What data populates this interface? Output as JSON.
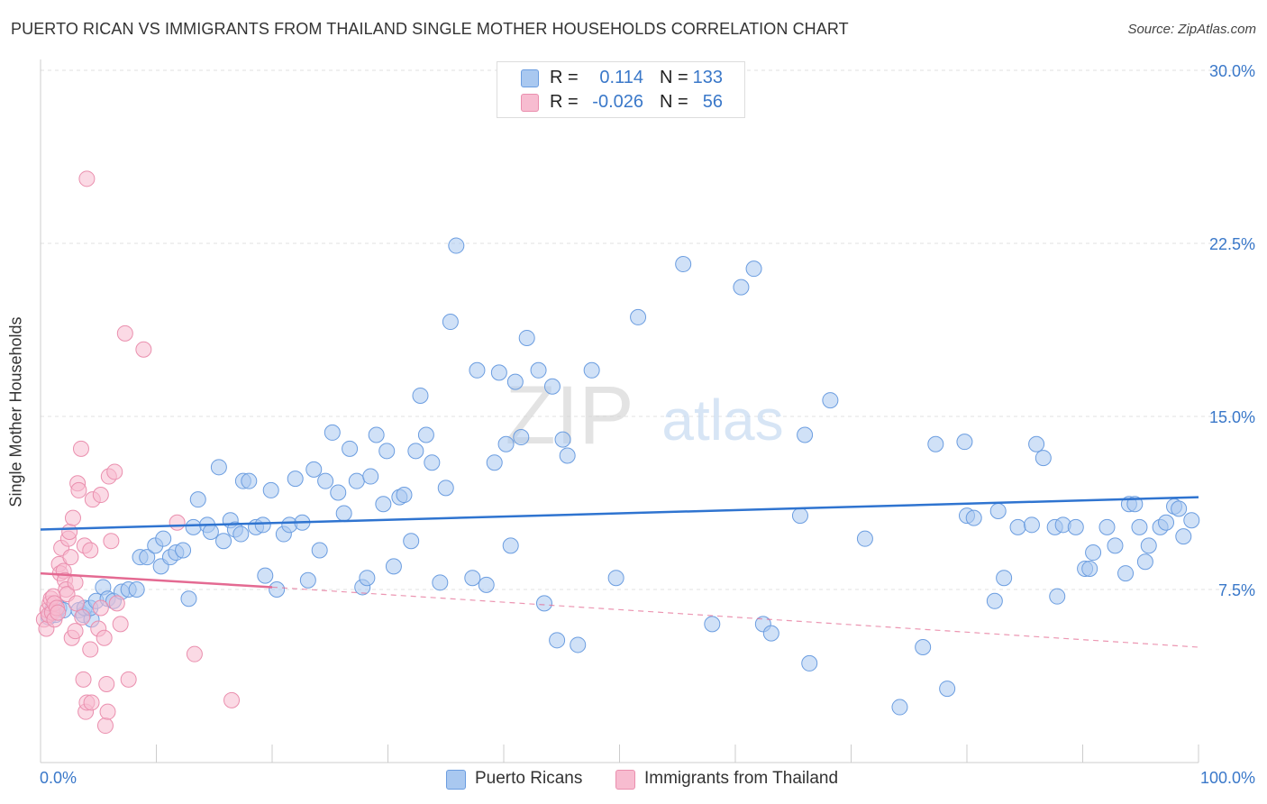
{
  "header": {
    "title": "PUERTO RICAN VS IMMIGRANTS FROM THAILAND SINGLE MOTHER HOUSEHOLDS CORRELATION CHART",
    "source": "Source: ZipAtlas.com"
  },
  "legend_top": {
    "rows": [
      {
        "r_label": "R =",
        "r_value": "0.114",
        "n_label": "N =",
        "n_value": "133",
        "color": "#a9c8f0",
        "border": "#6b9de0"
      },
      {
        "r_label": "R =",
        "r_value": "-0.026",
        "n_label": "N =",
        "n_value": "56",
        "color": "#f7bcd0",
        "border": "#ea8fae"
      }
    ]
  },
  "legend_bottom": {
    "items": [
      {
        "label": "Puerto Ricans",
        "color": "#a9c8f0",
        "border": "#6b9de0"
      },
      {
        "label": "Immigrants from Thailand",
        "color": "#f7bcd0",
        "border": "#ea8fae"
      }
    ]
  },
  "watermark": {
    "zip": "ZIP",
    "atlas": "atlas"
  },
  "chart_data": {
    "type": "scatter",
    "title": "PUERTO RICAN VS IMMIGRANTS FROM THAILAND SINGLE MOTHER HOUSEHOLDS CORRELATION CHART",
    "xlabel": "",
    "ylabel": "Single Mother Households",
    "xlim": [
      0,
      100
    ],
    "ylim": [
      0,
      30
    ],
    "x_tick_labels": [
      "0.0%",
      "100.0%"
    ],
    "y_ticks": [
      7.5,
      15.0,
      22.5,
      30.0
    ],
    "y_tick_labels": [
      "7.5%",
      "15.0%",
      "22.5%",
      "30.0%"
    ],
    "grid": true,
    "colors": {
      "blue_fill": "#a9c8f0",
      "blue_stroke": "#6b9de0",
      "blue_line": "#2f74d0",
      "pink_fill": "#f7bcd0",
      "pink_stroke": "#ea8fae",
      "pink_line": "#e46a92",
      "axis_text": "#3a78c9"
    },
    "series": [
      {
        "name": "Puerto Ricans",
        "trend": {
          "x0": 0,
          "y0": 10.1,
          "x1": 100,
          "y1": 11.5
        },
        "points": [
          [
            0.7,
            6.3
          ],
          [
            1.0,
            6.6
          ],
          [
            1.3,
            6.4
          ],
          [
            1.6,
            6.7
          ],
          [
            2.0,
            6.6
          ],
          [
            3.3,
            6.6
          ],
          [
            3.7,
            6.4
          ],
          [
            4.4,
            6.2
          ],
          [
            3.8,
            6.7
          ],
          [
            4.3,
            6.7
          ],
          [
            4.8,
            7.0
          ],
          [
            5.4,
            7.6
          ],
          [
            5.8,
            7.1
          ],
          [
            6.3,
            7.0
          ],
          [
            7.0,
            7.4
          ],
          [
            7.6,
            7.5
          ],
          [
            8.3,
            7.5
          ],
          [
            8.6,
            8.9
          ],
          [
            9.2,
            8.9
          ],
          [
            9.9,
            9.4
          ],
          [
            10.4,
            8.5
          ],
          [
            10.6,
            9.7
          ],
          [
            11.2,
            8.9
          ],
          [
            11.7,
            9.1
          ],
          [
            12.3,
            9.2
          ],
          [
            12.8,
            7.1
          ],
          [
            13.2,
            10.2
          ],
          [
            13.6,
            11.4
          ],
          [
            14.4,
            10.3
          ],
          [
            14.7,
            10.0
          ],
          [
            15.4,
            12.8
          ],
          [
            15.8,
            9.6
          ],
          [
            16.4,
            10.5
          ],
          [
            16.8,
            10.1
          ],
          [
            17.3,
            9.9
          ],
          [
            17.5,
            12.2
          ],
          [
            18.0,
            12.2
          ],
          [
            18.6,
            10.2
          ],
          [
            19.2,
            10.3
          ],
          [
            19.4,
            8.1
          ],
          [
            19.9,
            11.8
          ],
          [
            20.4,
            7.5
          ],
          [
            21.0,
            9.9
          ],
          [
            21.5,
            10.3
          ],
          [
            22.0,
            12.3
          ],
          [
            22.6,
            10.4
          ],
          [
            23.1,
            7.9
          ],
          [
            23.6,
            12.7
          ],
          [
            24.1,
            9.2
          ],
          [
            24.6,
            12.2
          ],
          [
            25.2,
            14.3
          ],
          [
            25.7,
            11.7
          ],
          [
            26.2,
            10.8
          ],
          [
            26.7,
            13.6
          ],
          [
            27.3,
            12.2
          ],
          [
            27.8,
            7.6
          ],
          [
            28.2,
            8.0
          ],
          [
            28.5,
            12.4
          ],
          [
            29.0,
            14.2
          ],
          [
            29.6,
            11.2
          ],
          [
            29.9,
            13.5
          ],
          [
            30.5,
            8.5
          ],
          [
            31.0,
            11.5
          ],
          [
            31.4,
            11.6
          ],
          [
            32.0,
            9.6
          ],
          [
            32.4,
            13.5
          ],
          [
            32.8,
            15.9
          ],
          [
            33.3,
            14.2
          ],
          [
            33.8,
            13.0
          ],
          [
            34.5,
            7.8
          ],
          [
            35.0,
            11.9
          ],
          [
            35.4,
            19.1
          ],
          [
            35.9,
            22.4
          ],
          [
            37.3,
            8.0
          ],
          [
            37.7,
            17.0
          ],
          [
            38.5,
            7.7
          ],
          [
            39.2,
            13.0
          ],
          [
            39.6,
            16.9
          ],
          [
            40.2,
            13.8
          ],
          [
            40.6,
            9.4
          ],
          [
            41.0,
            16.5
          ],
          [
            41.5,
            14.1
          ],
          [
            42.0,
            18.4
          ],
          [
            43.0,
            17.0
          ],
          [
            43.5,
            6.9
          ],
          [
            44.2,
            16.3
          ],
          [
            44.6,
            5.3
          ],
          [
            45.1,
            14.0
          ],
          [
            45.5,
            13.3
          ],
          [
            46.4,
            5.1
          ],
          [
            47.6,
            17.0
          ],
          [
            49.7,
            8.0
          ],
          [
            51.6,
            19.3
          ],
          [
            55.5,
            21.6
          ],
          [
            58.0,
            6.0
          ],
          [
            60.5,
            20.6
          ],
          [
            61.6,
            21.4
          ],
          [
            62.4,
            6.0
          ],
          [
            63.1,
            5.6
          ],
          [
            65.6,
            10.7
          ],
          [
            66.0,
            14.2
          ],
          [
            66.4,
            4.3
          ],
          [
            68.2,
            15.7
          ],
          [
            71.2,
            9.7
          ],
          [
            74.2,
            2.4
          ],
          [
            76.2,
            5.0
          ],
          [
            77.3,
            13.8
          ],
          [
            78.3,
            3.2
          ],
          [
            79.8,
            13.9
          ],
          [
            80.0,
            10.7
          ],
          [
            80.6,
            10.6
          ],
          [
            82.4,
            7.0
          ],
          [
            82.7,
            10.9
          ],
          [
            83.2,
            8.0
          ],
          [
            84.4,
            10.2
          ],
          [
            85.6,
            10.3
          ],
          [
            86.0,
            13.8
          ],
          [
            86.6,
            13.2
          ],
          [
            87.6,
            10.2
          ],
          [
            87.8,
            7.2
          ],
          [
            88.3,
            10.3
          ],
          [
            89.4,
            10.2
          ],
          [
            90.2,
            8.4
          ],
          [
            90.6,
            8.4
          ],
          [
            90.9,
            9.1
          ],
          [
            92.1,
            10.2
          ],
          [
            92.8,
            9.4
          ],
          [
            93.7,
            8.2
          ],
          [
            94.0,
            11.2
          ],
          [
            94.5,
            11.2
          ],
          [
            94.9,
            10.2
          ],
          [
            95.4,
            8.7
          ],
          [
            95.7,
            9.4
          ],
          [
            96.7,
            10.2
          ],
          [
            97.2,
            10.4
          ],
          [
            97.9,
            11.1
          ],
          [
            98.3,
            11.0
          ],
          [
            98.7,
            9.8
          ],
          [
            99.4,
            10.5
          ]
        ]
      },
      {
        "name": "Immigrants from Thailand",
        "trend": {
          "x0": 0,
          "y0": 8.2,
          "x1": 20,
          "y1": 7.6,
          "dash_x1": 100,
          "dash_y1": 5.0
        },
        "points": [
          [
            0.3,
            6.2
          ],
          [
            0.5,
            5.8
          ],
          [
            0.6,
            6.6
          ],
          [
            0.7,
            6.4
          ],
          [
            0.8,
            6.9
          ],
          [
            0.9,
            7.1
          ],
          [
            1.0,
            6.5
          ],
          [
            1.1,
            7.2
          ],
          [
            1.2,
            6.9
          ],
          [
            1.2,
            6.2
          ],
          [
            1.4,
            6.7
          ],
          [
            1.5,
            6.5
          ],
          [
            1.6,
            8.6
          ],
          [
            1.7,
            8.2
          ],
          [
            1.8,
            9.3
          ],
          [
            2.0,
            8.3
          ],
          [
            2.1,
            7.9
          ],
          [
            2.2,
            7.5
          ],
          [
            2.3,
            7.3
          ],
          [
            2.4,
            9.7
          ],
          [
            2.5,
            10.0
          ],
          [
            2.6,
            8.9
          ],
          [
            2.7,
            5.4
          ],
          [
            2.8,
            10.6
          ],
          [
            3.0,
            5.7
          ],
          [
            3.0,
            7.8
          ],
          [
            3.1,
            6.9
          ],
          [
            3.2,
            12.1
          ],
          [
            3.3,
            11.8
          ],
          [
            3.5,
            13.6
          ],
          [
            3.6,
            6.3
          ],
          [
            3.7,
            3.6
          ],
          [
            3.8,
            9.4
          ],
          [
            3.9,
            2.2
          ],
          [
            4.0,
            2.6
          ],
          [
            4.0,
            25.3
          ],
          [
            4.3,
            9.2
          ],
          [
            4.3,
            4.9
          ],
          [
            4.4,
            2.6
          ],
          [
            4.5,
            11.4
          ],
          [
            5.0,
            5.8
          ],
          [
            5.2,
            11.6
          ],
          [
            5.2,
            6.7
          ],
          [
            5.5,
            5.4
          ],
          [
            5.6,
            1.6
          ],
          [
            5.7,
            3.4
          ],
          [
            5.8,
            2.2
          ],
          [
            5.9,
            12.4
          ],
          [
            6.1,
            9.6
          ],
          [
            6.4,
            12.6
          ],
          [
            6.6,
            6.9
          ],
          [
            6.9,
            6.0
          ],
          [
            7.3,
            18.6
          ],
          [
            7.6,
            3.6
          ],
          [
            8.9,
            17.9
          ],
          [
            11.8,
            10.4
          ],
          [
            13.3,
            4.7
          ],
          [
            16.5,
            2.7
          ]
        ]
      }
    ]
  }
}
